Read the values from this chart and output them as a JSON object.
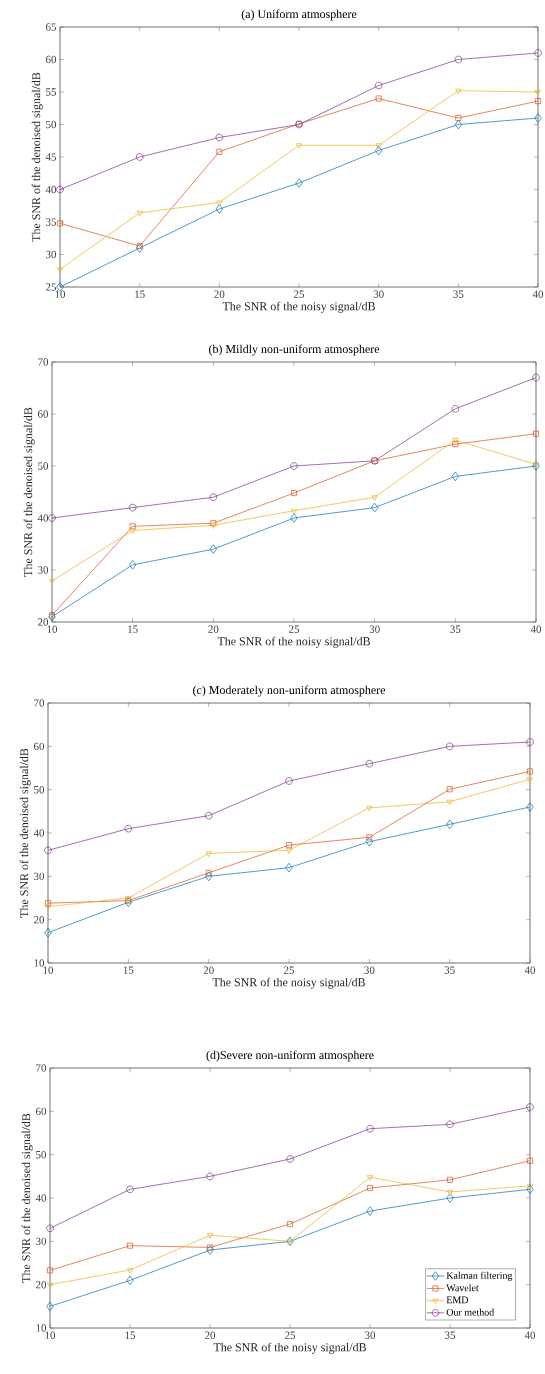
{
  "chart_data": [
    {
      "type": "line",
      "title": "(a) Uniform atmosphere",
      "xlabel": "The SNR of the noisy signal/dB",
      "ylabel": "The SNR of the denoised signal/dB",
      "x": [
        10,
        15,
        20,
        25,
        30,
        35,
        40
      ],
      "xlim": [
        10,
        40
      ],
      "xticks": [
        10,
        15,
        20,
        25,
        30,
        35,
        40
      ],
      "ylim": [
        25,
        65
      ],
      "yticks": [
        25,
        30,
        35,
        40,
        45,
        50,
        55,
        60,
        65
      ],
      "grid": false,
      "legend": false,
      "line_style": "solid",
      "series": [
        {
          "color": "#0072bd",
          "marker": "diamond",
          "values": [
            25,
            31,
            37,
            41,
            46,
            50,
            51
          ]
        },
        {
          "color": "#d95319",
          "marker": "square",
          "values": [
            34.8,
            31.3,
            45.8,
            50.1,
            54,
            51,
            53.6
          ]
        },
        {
          "color": "#edb120",
          "marker": "triangle",
          "values": [
            27.7,
            36.4,
            38,
            46.8,
            46.8,
            55.2,
            55
          ]
        },
        {
          "color": "#7e2f8e",
          "marker": "circle",
          "values": [
            40,
            45,
            48,
            50,
            56,
            60,
            61
          ]
        }
      ]
    },
    {
      "type": "line",
      "title": "(b) Mildly non-uniform atmosphere",
      "xlabel": "The SNR of the noisy signal/dB",
      "ylabel": "The SNR of the denoised signal/dB",
      "x": [
        10,
        15,
        20,
        25,
        30,
        35,
        40
      ],
      "xlim": [
        10,
        40
      ],
      "xticks": [
        10,
        15,
        20,
        25,
        30,
        35,
        40
      ],
      "ylim": [
        20,
        70
      ],
      "yticks": [
        20,
        30,
        40,
        50,
        60,
        70
      ],
      "grid": false,
      "legend": false,
      "line_style": "solid",
      "series": [
        {
          "color": "#0072bd",
          "marker": "diamond",
          "values": [
            21,
            31,
            34,
            40,
            42,
            48,
            50
          ]
        },
        {
          "color": "#d95319",
          "marker": "square",
          "values": [
            21.3,
            38.4,
            39,
            44.8,
            51,
            54.2,
            56.2
          ]
        },
        {
          "color": "#edb120",
          "marker": "triangle",
          "values": [
            27.9,
            37.6,
            38.6,
            41.4,
            44,
            55,
            50.3
          ]
        },
        {
          "color": "#7e2f8e",
          "marker": "circle",
          "values": [
            40,
            42,
            44,
            50,
            51,
            61,
            67
          ]
        }
      ]
    },
    {
      "type": "line",
      "title": "(c) Moderately non-uniform atmosphere",
      "xlabel": "The SNR of the noisy signal/dB",
      "ylabel": "The SNR of the denoised signal/dB",
      "x": [
        10,
        15,
        20,
        25,
        30,
        35,
        40
      ],
      "xlim": [
        10,
        40
      ],
      "xticks": [
        10,
        15,
        20,
        25,
        30,
        35,
        40
      ],
      "ylim": [
        10,
        70
      ],
      "yticks": [
        10,
        20,
        30,
        40,
        50,
        60,
        70
      ],
      "grid": false,
      "legend": false,
      "line_style": "solid",
      "series": [
        {
          "color": "#0072bd",
          "marker": "diamond",
          "values": [
            17,
            24,
            30,
            32,
            38,
            42,
            46
          ]
        },
        {
          "color": "#d95319",
          "marker": "square",
          "values": [
            23.8,
            24.4,
            30.8,
            37.2,
            39,
            50.1,
            54.2
          ]
        },
        {
          "color": "#edb120",
          "marker": "triangle",
          "values": [
            23,
            25,
            35.3,
            36,
            45.8,
            47.2,
            52.4
          ]
        },
        {
          "color": "#7e2f8e",
          "marker": "circle",
          "values": [
            36,
            41,
            44,
            52,
            56,
            60,
            61
          ]
        }
      ]
    },
    {
      "type": "line",
      "title": "(d)Severe non-uniform atmosphere",
      "xlabel": "The SNR of the noisy signal/dB",
      "ylabel": "The SNR of the denoised signal/dB",
      "x": [
        10,
        15,
        20,
        25,
        30,
        35,
        40
      ],
      "xlim": [
        10,
        40
      ],
      "xticks": [
        10,
        15,
        20,
        25,
        30,
        35,
        40
      ],
      "ylim": [
        10,
        70
      ],
      "yticks": [
        10,
        20,
        30,
        40,
        50,
        60,
        70
      ],
      "grid": false,
      "legend": "bottom right",
      "line_style": "solid",
      "series": [
        {
          "name": "Kalman filtering",
          "color": "#0072bd",
          "marker": "diamond",
          "values": [
            15,
            21,
            28,
            30,
            37,
            40,
            42
          ]
        },
        {
          "name": "Wavelet",
          "color": "#d95319",
          "marker": "square",
          "values": [
            23.3,
            29,
            28.6,
            34,
            42.3,
            44.2,
            48.6
          ]
        },
        {
          "name": "EMD",
          "color": "#edb120",
          "marker": "triangle",
          "values": [
            20,
            23.4,
            31.4,
            30,
            44.8,
            41.4,
            42.8
          ]
        },
        {
          "name": "Our method",
          "color": "#7e2f8e",
          "marker": "circle",
          "values": [
            33,
            42,
            45,
            49,
            56,
            57,
            61
          ]
        }
      ]
    }
  ]
}
